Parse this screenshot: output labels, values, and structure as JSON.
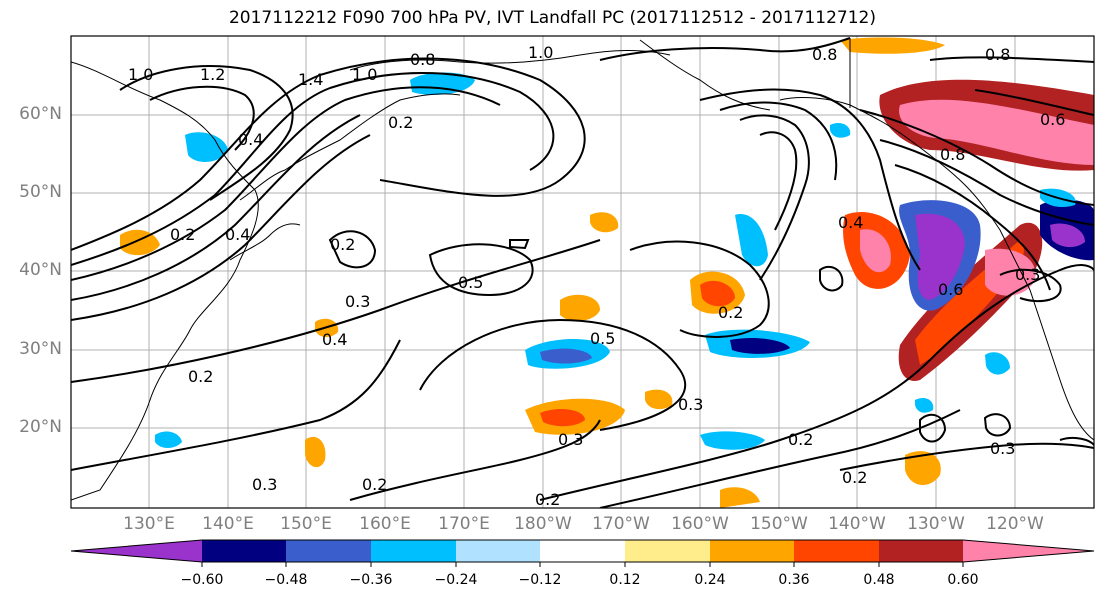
{
  "title": "2017112212 F090 700 hPa PV, IVT Landfall PC (2017112512 - 2017112712)",
  "map": {
    "lat_labels": [
      "60°N",
      "50°N",
      "40°N",
      "30°N",
      "20°N"
    ],
    "lon_labels": [
      "130°E",
      "140°E",
      "150°E",
      "160°E",
      "170°E",
      "180°W",
      "170°W",
      "160°W",
      "150°W",
      "140°W",
      "130°W",
      "120°W"
    ],
    "contour_labels": [
      "1.0",
      "1.2",
      "1.4",
      "1.0",
      "0.8",
      "1.0",
      "0.8",
      "0.8",
      "0.2",
      "0.4",
      "0.2",
      "0.4",
      "0.2",
      "0.3",
      "0.5",
      "0.4",
      "0.2",
      "0.3",
      "0.5",
      "0.2",
      "0.3",
      "0.3",
      "0.2",
      "0.2",
      "0.2",
      "0.3",
      "0.4",
      "0.6",
      "0.6",
      "0.8",
      "0.2",
      "0.3"
    ],
    "shading_colors": [
      "#9933cc",
      "#000080",
      "#3a5fcd",
      "#00bfff",
      "#b0e2ff",
      "#ffffff",
      "#ffec8b",
      "#ffa500",
      "#ff4500",
      "#b22222",
      "#ff82ab"
    ]
  },
  "colorbar": {
    "labels": [
      "−0.60",
      "−0.48",
      "−0.36",
      "−0.24",
      "−0.12",
      "0.12",
      "0.24",
      "0.36",
      "0.48",
      "0.60"
    ]
  }
}
